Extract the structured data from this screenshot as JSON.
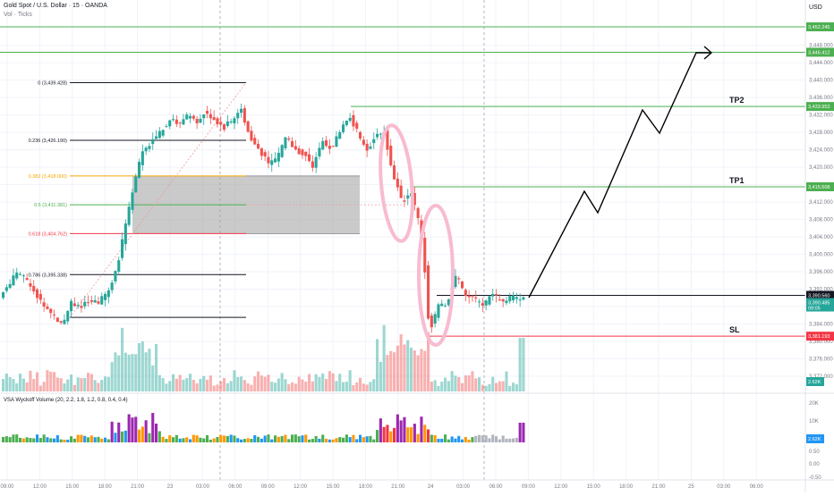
{
  "header": {
    "symbol": "Gold Spot / U.S. Dollar · 15 · OANDA",
    "vol_label": "Vol · Ticks",
    "currency": "USD"
  },
  "indicator": {
    "label": "VSA Wyckoff Volume (20, 2.2, 1.8, 1.2, 0.8, 0.4, 0.4)",
    "ticks": [
      "20K",
      "10K",
      "0.50",
      "0.00",
      "-0.50"
    ]
  },
  "colors": {
    "up": "#26a69a",
    "down": "#ef5350",
    "fib_black": "#131722",
    "fib_orange": "#f7a600",
    "fib_green": "#4caf50",
    "fib_red": "#f23645",
    "zone": "#9e9e9e",
    "tp_line": "#4caf50",
    "sl_line": "#f23645",
    "ellipse": "#f8bbd0",
    "vsa_purple": "#9c27b0",
    "vsa_orange": "#ff9800",
    "vsa_green": "#4caf50",
    "vsa_blue": "#2196f3",
    "vsa_red": "#f23645",
    "vsa_gray": "#b2b5be"
  },
  "chart_data": {
    "type": "candlestick",
    "x_ticks": [
      "09:00",
      "12:00",
      "15:00",
      "18:00",
      "21:00",
      "23",
      "03:00",
      "06:00",
      "09:00",
      "12:00",
      "15:00",
      "18:00",
      "21:00",
      "24",
      "03:00",
      "06:00",
      "09:00",
      "12:00",
      "15:00",
      "18:00",
      "21:00",
      "25",
      "03:00",
      "06:00"
    ],
    "y_ticks": [
      3448,
      3444,
      3440,
      3436,
      3432,
      3428,
      3424,
      3420,
      3416,
      3412,
      3408,
      3404,
      3400,
      3396,
      3392,
      3388,
      3384,
      3380,
      3376,
      3372
    ],
    "ylim": [
      3368.5,
      3458
    ],
    "fib_levels": [
      {
        "label": "0 (3,439.428)",
        "value": 3439.428
      },
      {
        "label": "0.236 (3,426.190)",
        "value": 3426.19
      },
      {
        "label": "0.382 (3,418.000)",
        "value": 3418.0
      },
      {
        "label": "0.5 (3,411.381)",
        "value": 3411.381
      },
      {
        "label": "0.618 (3,404.762)",
        "value": 3404.762
      },
      {
        "label": "0.786 (3,395.338)",
        "value": 3395.338
      },
      {
        "label": "",
        "value": 3385.5
      }
    ],
    "horizontal_lines": [
      {
        "label": "3,452.245",
        "value": 3452.245
      },
      {
        "label": "3,446.412",
        "value": 3446.412
      },
      {
        "label": "3,433.953",
        "value": 3433.953
      },
      {
        "label": "3,415.508",
        "value": 3415.508
      },
      {
        "label": "3,381.193",
        "value": 3381.193
      }
    ],
    "current_price": {
      "label": "3,390.560",
      "value": 3390.56
    },
    "price_badge_2": {
      "label": "3,390.485",
      "sub": "09:05",
      "value": 3388.7
    },
    "volume_badge": {
      "label": "2.62K"
    },
    "annotations": [
      "TP2",
      "TP1",
      "SL"
    ]
  }
}
